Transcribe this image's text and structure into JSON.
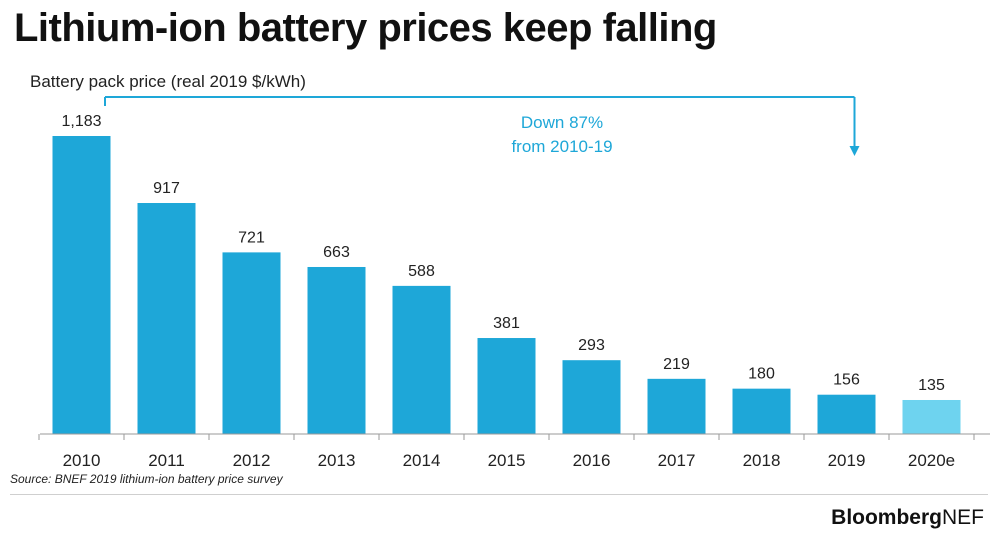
{
  "title": "Lithium-ion battery prices keep falling",
  "subtitle": "Battery pack price (real 2019 $/kWh)",
  "chart_data": {
    "type": "bar",
    "title": "Lithium-ion battery prices keep falling",
    "ylabel": "Battery pack price (real 2019 $/kWh)",
    "xlabel": "",
    "categories": [
      "2010",
      "2011",
      "2012",
      "2013",
      "2014",
      "2015",
      "2016",
      "2017",
      "2018",
      "2019",
      "2020e"
    ],
    "values": [
      1183,
      917,
      721,
      663,
      588,
      381,
      293,
      219,
      180,
      156,
      135
    ],
    "value_labels": [
      "1,183",
      "917",
      "721",
      "663",
      "588",
      "381",
      "293",
      "219",
      "180",
      "156",
      "135"
    ],
    "ylim": [
      0,
      1300
    ],
    "grid": false,
    "legend": "none",
    "bar_color": "#1ea7d8",
    "highlight_color": "#6ed3ef",
    "highlight_index": 10,
    "annotation": {
      "text_lines": [
        "Down 87%",
        "from 2010-19"
      ],
      "from_index": 0,
      "to_index": 9,
      "color": "#1ea7d8"
    }
  },
  "source": "Source: BNEF 2019 lithium-ion battery price survey",
  "brand": {
    "bold": "Bloomberg",
    "normal": "NEF"
  }
}
